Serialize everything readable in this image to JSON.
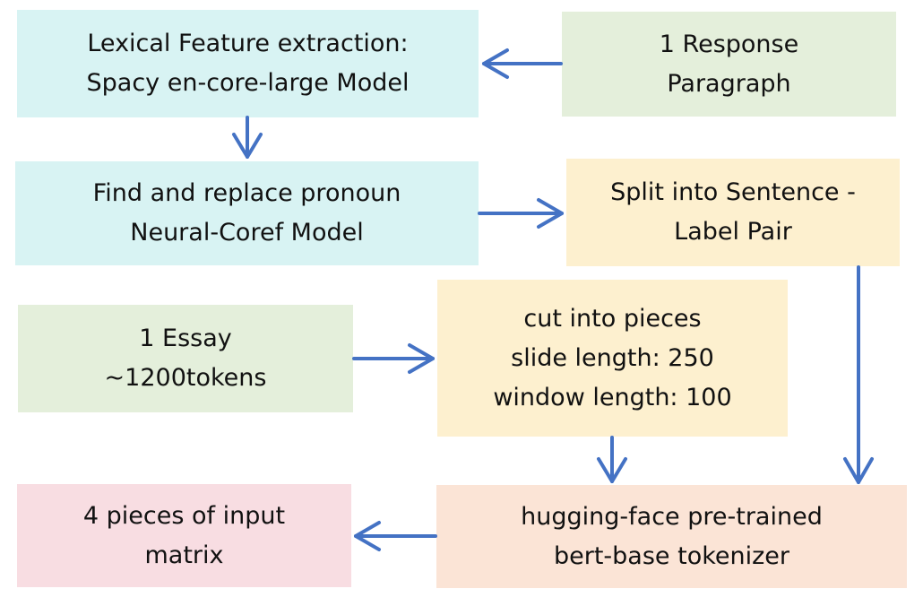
{
  "colors": {
    "cyan": "#d8f3f3",
    "green": "#e4efdb",
    "yellow": "#fdf0cf",
    "peach": "#fbe4d6",
    "pink": "#f8dde2",
    "arrow": "#4472c4"
  },
  "nodes": {
    "lexical": {
      "lines": [
        "Lexical Feature extraction:",
        "Spacy en-core-large Model"
      ]
    },
    "response": {
      "lines": [
        "1 Response",
        "Paragraph"
      ]
    },
    "coref": {
      "lines": [
        "Find and replace pronoun",
        "Neural-Coref Model"
      ]
    },
    "split": {
      "lines": [
        "Split into Sentence -",
        "Label Pair"
      ]
    },
    "essay": {
      "lines": [
        "1 Essay",
        "~1200tokens"
      ]
    },
    "cut": {
      "lines": [
        "cut into pieces",
        "slide length: 250",
        "window length: 100"
      ]
    },
    "output": {
      "lines": [
        "4 pieces of input",
        "matrix"
      ]
    },
    "tokenizer": {
      "lines": [
        "hugging-face pre-trained",
        "bert-base tokenizer"
      ]
    }
  },
  "edges": [
    {
      "from": "response",
      "to": "lexical"
    },
    {
      "from": "lexical",
      "to": "coref"
    },
    {
      "from": "coref",
      "to": "split"
    },
    {
      "from": "split",
      "to": "tokenizer"
    },
    {
      "from": "essay",
      "to": "cut"
    },
    {
      "from": "cut",
      "to": "tokenizer"
    },
    {
      "from": "tokenizer",
      "to": "output"
    }
  ]
}
